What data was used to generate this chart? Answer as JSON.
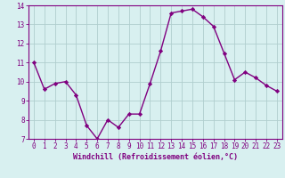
{
  "hours": [
    0,
    1,
    2,
    3,
    4,
    5,
    6,
    7,
    8,
    9,
    10,
    11,
    12,
    13,
    14,
    15,
    16,
    17,
    18,
    19,
    20,
    21,
    22,
    23
  ],
  "values": [
    11.0,
    9.6,
    9.9,
    10.0,
    9.3,
    7.7,
    7.0,
    8.0,
    7.6,
    8.3,
    8.3,
    9.9,
    11.6,
    13.6,
    13.7,
    13.8,
    13.4,
    12.9,
    11.5,
    10.1,
    10.5,
    10.2,
    9.8,
    9.5
  ],
  "line_color": "#800080",
  "marker": "D",
  "marker_size": 2.2,
  "bg_color": "#d8f0f0",
  "grid_color": "#b0cece",
  "xlabel": "Windchill (Refroidissement éolien,°C)",
  "xlabel_color": "#800080",
  "tick_color": "#800080",
  "spine_color": "#800080",
  "ylim": [
    7,
    14
  ],
  "xlim": [
    -0.5,
    23.5
  ],
  "yticks": [
    7,
    8,
    9,
    10,
    11,
    12,
    13,
    14
  ],
  "xticks": [
    0,
    1,
    2,
    3,
    4,
    5,
    6,
    7,
    8,
    9,
    10,
    11,
    12,
    13,
    14,
    15,
    16,
    17,
    18,
    19,
    20,
    21,
    22,
    23
  ],
  "tick_fontsize": 5.5,
  "xlabel_fontsize": 6.0,
  "linewidth": 1.0
}
